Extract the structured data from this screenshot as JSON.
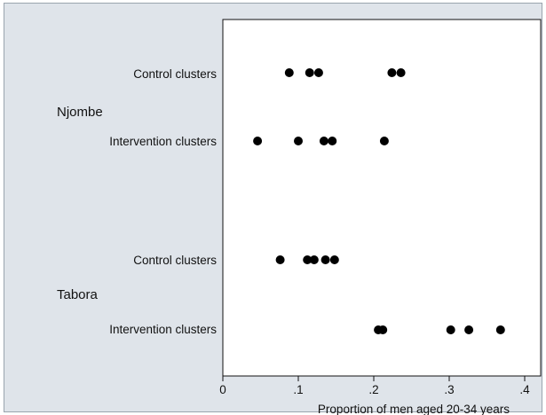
{
  "chart_data": {
    "type": "scatter",
    "title": "",
    "xlabel": "Proportion of men aged 20-34 years",
    "ylabel": "",
    "xlim": [
      0,
      0.4
    ],
    "xticks": [
      {
        "value": 0,
        "label": "0"
      },
      {
        "value": 0.1,
        "label": ".1"
      },
      {
        "value": 0.2,
        "label": ".2"
      },
      {
        "value": 0.3,
        "label": ".3"
      },
      {
        "value": 0.4,
        "label": ".4"
      }
    ],
    "grid": false,
    "legend": "none",
    "marker_color": "#000000",
    "groups": [
      {
        "label": "Njombe",
        "rows": [
          {
            "label": "Control clusters",
            "values": [
              0.088,
              0.115,
              0.127,
              0.224,
              0.236
            ]
          },
          {
            "label": "Intervention clusters",
            "values": [
              0.046,
              0.1,
              0.134,
              0.145,
              0.214
            ]
          }
        ]
      },
      {
        "label": "Tabora",
        "rows": [
          {
            "label": "Control clusters",
            "values": [
              0.076,
              0.112,
              0.121,
              0.136,
              0.148
            ]
          },
          {
            "label": "Intervention clusters",
            "values": [
              0.206,
              0.212,
              0.302,
              0.326,
              0.368
            ]
          }
        ]
      }
    ]
  }
}
